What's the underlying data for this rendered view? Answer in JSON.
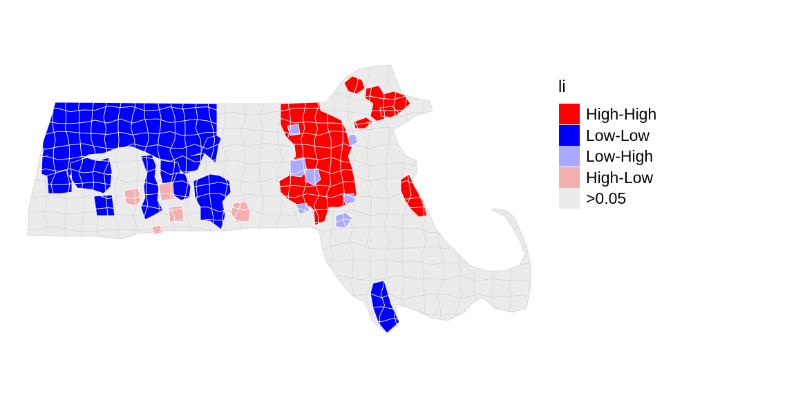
{
  "legend": {
    "title": "li",
    "items": [
      {
        "label": "High-High",
        "color": "#FF0000"
      },
      {
        "label": "Low-Low",
        "color": "#0000FF"
      },
      {
        "label": "Low-High",
        "color": "#A9AAFF"
      },
      {
        "label": "High-Low",
        "color": "#F4AEAD"
      },
      {
        "label": ">0.05",
        "color": "#EBEBEB"
      }
    ]
  },
  "map": {
    "region": "Massachusetts municipalities",
    "base_fill": "#EBEBEB",
    "border_color": "#D8D8D8",
    "cluster_areas": [
      {
        "category": "Low-Low"
      },
      {
        "category": "Low-Low"
      },
      {
        "category": "Low-Low"
      },
      {
        "category": "Low-Low"
      },
      {
        "category": "Low-Low"
      },
      {
        "category": "Low-Low"
      },
      {
        "category": "Low-Low"
      },
      {
        "category": "Low-Low"
      },
      {
        "category": "Low-Low"
      },
      {
        "category": "Low-Low"
      },
      {
        "category": "High-Low"
      },
      {
        "category": "High-Low"
      },
      {
        "category": "High-Low"
      },
      {
        "category": "High-Low"
      },
      {
        "category": "High-Low"
      },
      {
        "category": "High-High"
      },
      {
        "category": "High-High"
      },
      {
        "category": "High-High"
      },
      {
        "category": "High-High"
      },
      {
        "category": "High-High"
      },
      {
        "category": "High-High"
      },
      {
        "category": "Low-High"
      },
      {
        "category": "Low-High"
      },
      {
        "category": "Low-High"
      },
      {
        "category": "Low-High"
      },
      {
        "category": "Low-High"
      },
      {
        "category": "Low-High"
      }
    ]
  }
}
